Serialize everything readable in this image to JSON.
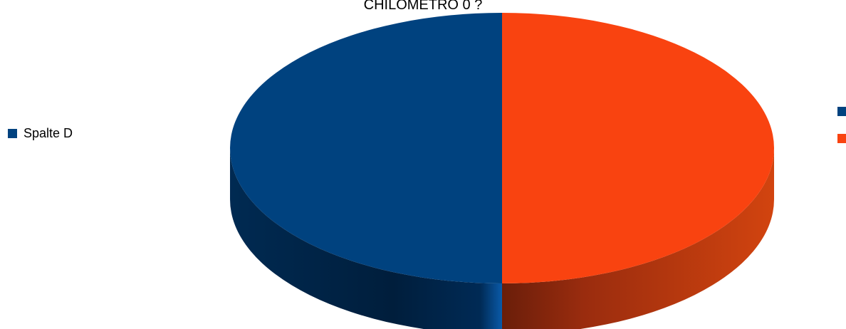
{
  "chart_data": {
    "type": "pie",
    "title": "CHILOMETRO 0 ?",
    "legend_placement": "left",
    "legend_series_name": "Spalte D",
    "slices": [
      {
        "value": 50,
        "color": "#00427f"
      },
      {
        "value": 50,
        "color": "#f94310"
      }
    ],
    "colors": {
      "blue_side": "#001f3f",
      "orange_side": "#a83010"
    }
  }
}
